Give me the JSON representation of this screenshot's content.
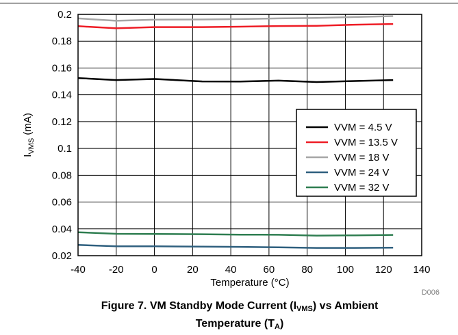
{
  "chart_data": {
    "type": "line",
    "xlabel": "Temperature (°C)",
    "ylabel": {
      "main": "I",
      "sub": "VMS",
      "rest": " (mA)"
    },
    "xlim": [
      -40,
      140
    ],
    "ylim": [
      0.02,
      0.2
    ],
    "xticks": [
      -40,
      -20,
      0,
      20,
      40,
      60,
      80,
      100,
      120,
      140
    ],
    "xtick_labels": [
      "-40",
      "-20",
      "0",
      "20",
      "40",
      "60",
      "80",
      "100",
      "120",
      "140"
    ],
    "yticks": [
      0.02,
      0.04,
      0.06,
      0.08,
      0.1,
      0.12,
      0.14,
      0.16,
      0.18,
      0.2
    ],
    "ytick_labels": [
      "0.02",
      "0.04",
      "0.06",
      "0.08",
      "0.1",
      "0.12",
      "0.14",
      "0.16",
      "0.18",
      "0.2"
    ],
    "grid": true,
    "legend_position": "right",
    "series": [
      {
        "name": "VVM = 4.5 V",
        "color": "#000000",
        "x": [
          -40,
          -20,
          0,
          25,
          45,
          65,
          85,
          105,
          125
        ],
        "y": [
          0.1525,
          0.151,
          0.1518,
          0.15,
          0.1499,
          0.1506,
          0.1495,
          0.1503,
          0.151
        ]
      },
      {
        "name": "VVM = 13.5 V",
        "color": "#ee1c25",
        "x": [
          -40,
          -20,
          0,
          25,
          45,
          65,
          85,
          105,
          125
        ],
        "y": [
          0.1912,
          0.1896,
          0.1905,
          0.1905,
          0.1908,
          0.1913,
          0.1915,
          0.1923,
          0.1928
        ]
      },
      {
        "name": "VVM = 18 V",
        "color": "#a6a6a6",
        "x": [
          -40,
          -20,
          0,
          25,
          45,
          65,
          85,
          105,
          125
        ],
        "y": [
          0.197,
          0.1952,
          0.196,
          0.1962,
          0.1965,
          0.197,
          0.1973,
          0.198,
          0.1987
        ]
      },
      {
        "name": "VVM = 24 V",
        "color": "#2e5f7e",
        "x": [
          -40,
          -20,
          0,
          25,
          45,
          65,
          85,
          105,
          125
        ],
        "y": [
          0.028,
          0.027,
          0.027,
          0.0268,
          0.0266,
          0.0262,
          0.0258,
          0.0258,
          0.026
        ]
      },
      {
        "name": "VVM = 32 V",
        "color": "#2e7d50",
        "x": [
          -40,
          -20,
          0,
          25,
          45,
          65,
          85,
          105,
          125
        ],
        "y": [
          0.0375,
          0.0363,
          0.0362,
          0.036,
          0.0357,
          0.0356,
          0.035,
          0.0352,
          0.0355
        ]
      }
    ],
    "footnote": "D006"
  },
  "caption": {
    "line1_a": "Figure 7. VM Standby Mode Current (I",
    "line1_sub": "VMS",
    "line1_b": ") vs Ambient",
    "line2_a": "Temperature (T",
    "line2_sub": "A",
    "line2_b": ")"
  }
}
